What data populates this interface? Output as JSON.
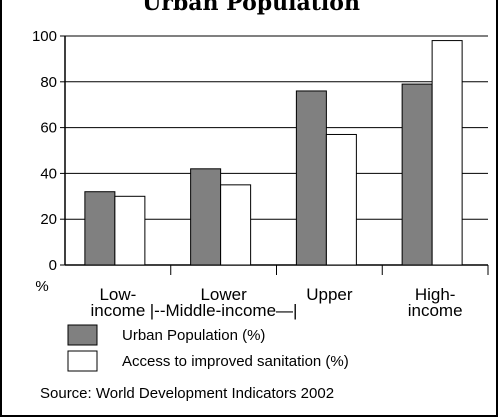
{
  "header": {
    "title": "Urban Population"
  },
  "chart_data": {
    "type": "bar",
    "ylim": [
      0,
      100
    ],
    "yticks": [
      0,
      20,
      40,
      60,
      80,
      100
    ],
    "ylabel": "%",
    "categories": [
      [
        "Low-",
        "income"
      ],
      [
        "Lower",
        "|--Middle-income—|"
      ],
      [
        "Upper",
        ""
      ],
      [
        "High-",
        "income"
      ]
    ],
    "series": [
      {
        "name": "Urban Population (%)",
        "values": [
          32,
          42,
          76,
          79
        ],
        "color": "#808080"
      },
      {
        "name": "Access to improved sanitation (%)",
        "values": [
          30,
          35,
          57,
          98
        ],
        "color": "#ffffff"
      }
    ],
    "grid": true,
    "legend": "bottom",
    "source": "Source: World Development Indicators 2002"
  }
}
